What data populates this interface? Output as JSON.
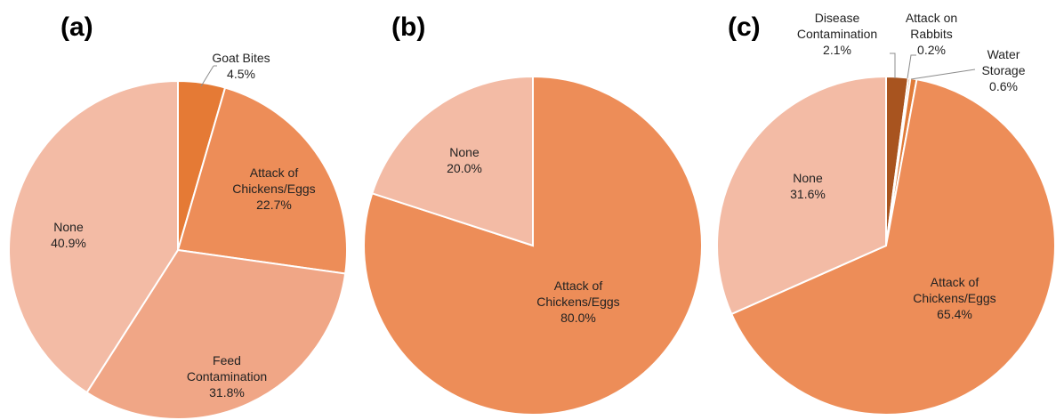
{
  "chart_data": [
    {
      "type": "pie",
      "panel_label": "(a)",
      "slices": [
        {
          "label": "Goat Bites",
          "value": 4.5,
          "value_text": "4.5%",
          "color": "#e57a35"
        },
        {
          "label": "Attack of Chickens/Eggs",
          "value": 22.7,
          "value_text": "22.7%",
          "color": "#ed8d58"
        },
        {
          "label": "Feed Contamination",
          "value": 31.8,
          "value_text": "31.8%",
          "color": "#f0a686"
        },
        {
          "label": "None",
          "value": 40.9,
          "value_text": "40.9%",
          "color": "#f3bba5"
        }
      ]
    },
    {
      "type": "pie",
      "panel_label": "(b)",
      "slices": [
        {
          "label": "Attack of Chickens/Eggs",
          "value": 80.0,
          "value_text": "80.0%",
          "color": "#ed8d58"
        },
        {
          "label": "None",
          "value": 20.0,
          "value_text": "20.0%",
          "color": "#f3bba5"
        }
      ]
    },
    {
      "type": "pie",
      "panel_label": "(c)",
      "slices": [
        {
          "label": "Disease Contamination",
          "value": 2.1,
          "value_text": "2.1%",
          "color": "#a8541f"
        },
        {
          "label": "Attack on Rabbits",
          "value": 0.2,
          "value_text": "0.2%",
          "color": "#c86b2c"
        },
        {
          "label": "Water Storage",
          "value": 0.6,
          "value_text": "0.6%",
          "color": "#e07b39"
        },
        {
          "label": "Attack of Chickens/Eggs",
          "value": 65.4,
          "value_text": "65.4%",
          "color": "#ed8d58"
        },
        {
          "label": "None",
          "value": 31.6,
          "value_text": "31.6%",
          "color": "#f3bba5"
        }
      ]
    }
  ]
}
